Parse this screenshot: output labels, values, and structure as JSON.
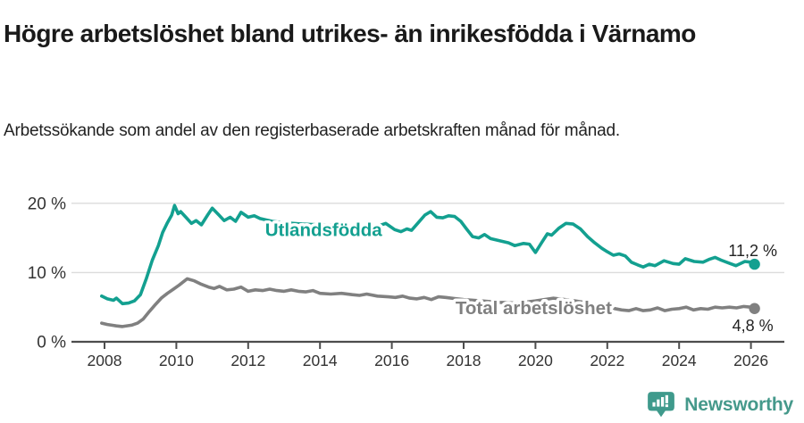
{
  "header": {
    "title": "Högre arbetslöshet bland utrikes- än inrikesfödda i Värnamo",
    "subtitle": "Arbetssökande som andel av den registerbaserade arbetskraften månad för månad."
  },
  "chart_data": {
    "type": "line",
    "title": "Högre arbetslöshet bland utrikes- än inrikesfödda i Värnamo",
    "subtitle": "Arbetssökande som andel av den registerbaserade arbetskraften månad för månad.",
    "grid": "horizontal",
    "legend": "inline-labels",
    "x_domain": [
      2007.9,
      2026.2
    ],
    "ylim": [
      0,
      21
    ],
    "y_ticks": [
      {
        "value": 0,
        "label": "0 %"
      },
      {
        "value": 10,
        "label": "10 %"
      },
      {
        "value": 20,
        "label": "20 %"
      }
    ],
    "x_ticks": [
      {
        "value": 2008,
        "label": "2008"
      },
      {
        "value": 2010,
        "label": "2010"
      },
      {
        "value": 2012,
        "label": "2012"
      },
      {
        "value": 2014,
        "label": "2014"
      },
      {
        "value": 2016,
        "label": "2016"
      },
      {
        "value": 2018,
        "label": "2018"
      },
      {
        "value": 2020,
        "label": "2020"
      },
      {
        "value": 2022,
        "label": "2022"
      },
      {
        "value": 2024,
        "label": "2024"
      },
      {
        "value": 2026,
        "label": "2026"
      }
    ],
    "series": [
      {
        "name": "Utlandsfödda",
        "color": "#13a090",
        "end_label": "11,2 %",
        "end_value": 11.2,
        "label_anchor": {
          "year": 2014.1,
          "value": 16.2
        },
        "points": [
          [
            2007.92,
            6.6
          ],
          [
            2008.08,
            6.2
          ],
          [
            2008.25,
            6.0
          ],
          [
            2008.33,
            6.3
          ],
          [
            2008.5,
            5.5
          ],
          [
            2008.67,
            5.6
          ],
          [
            2008.83,
            5.9
          ],
          [
            2009.0,
            6.8
          ],
          [
            2009.17,
            9.2
          ],
          [
            2009.33,
            11.8
          ],
          [
            2009.5,
            13.9
          ],
          [
            2009.62,
            15.8
          ],
          [
            2009.75,
            17.2
          ],
          [
            2009.87,
            18.3
          ],
          [
            2009.95,
            19.7
          ],
          [
            2010.05,
            18.5
          ],
          [
            2010.12,
            18.8
          ],
          [
            2010.28,
            17.9
          ],
          [
            2010.42,
            17.1
          ],
          [
            2010.55,
            17.5
          ],
          [
            2010.7,
            16.9
          ],
          [
            2010.87,
            18.3
          ],
          [
            2011.0,
            19.3
          ],
          [
            2011.17,
            18.4
          ],
          [
            2011.33,
            17.5
          ],
          [
            2011.5,
            18.0
          ],
          [
            2011.65,
            17.4
          ],
          [
            2011.8,
            18.7
          ],
          [
            2012.0,
            18.0
          ],
          [
            2012.17,
            18.2
          ],
          [
            2012.33,
            17.8
          ],
          [
            2012.67,
            17.4
          ],
          [
            2013.0,
            17.2
          ],
          [
            2013.5,
            17.0
          ],
          [
            2014.0,
            16.9
          ],
          [
            2014.5,
            16.8
          ],
          [
            2015.0,
            16.7
          ],
          [
            2015.5,
            16.5
          ],
          [
            2015.83,
            17.1
          ],
          [
            2016.08,
            16.2
          ],
          [
            2016.25,
            15.9
          ],
          [
            2016.42,
            16.3
          ],
          [
            2016.55,
            16.1
          ],
          [
            2016.75,
            17.3
          ],
          [
            2016.92,
            18.3
          ],
          [
            2017.08,
            18.8
          ],
          [
            2017.25,
            18.0
          ],
          [
            2017.42,
            17.9
          ],
          [
            2017.58,
            18.2
          ],
          [
            2017.75,
            18.1
          ],
          [
            2017.92,
            17.4
          ],
          [
            2018.08,
            16.3
          ],
          [
            2018.25,
            15.2
          ],
          [
            2018.42,
            15.0
          ],
          [
            2018.58,
            15.5
          ],
          [
            2018.75,
            14.9
          ],
          [
            2019.0,
            14.6
          ],
          [
            2019.25,
            14.3
          ],
          [
            2019.42,
            13.9
          ],
          [
            2019.67,
            14.2
          ],
          [
            2019.83,
            14.1
          ],
          [
            2020.0,
            12.9
          ],
          [
            2020.17,
            14.3
          ],
          [
            2020.33,
            15.6
          ],
          [
            2020.45,
            15.4
          ],
          [
            2020.65,
            16.4
          ],
          [
            2020.85,
            17.1
          ],
          [
            2021.05,
            17.0
          ],
          [
            2021.25,
            16.3
          ],
          [
            2021.45,
            15.2
          ],
          [
            2021.65,
            14.3
          ],
          [
            2021.85,
            13.5
          ],
          [
            2022.0,
            13.0
          ],
          [
            2022.17,
            12.5
          ],
          [
            2022.33,
            12.7
          ],
          [
            2022.5,
            12.4
          ],
          [
            2022.67,
            11.5
          ],
          [
            2022.85,
            11.1
          ],
          [
            2023.0,
            10.8
          ],
          [
            2023.17,
            11.2
          ],
          [
            2023.33,
            11.0
          ],
          [
            2023.58,
            11.7
          ],
          [
            2023.83,
            11.3
          ],
          [
            2024.0,
            11.2
          ],
          [
            2024.17,
            12.0
          ],
          [
            2024.42,
            11.6
          ],
          [
            2024.67,
            11.5
          ],
          [
            2024.83,
            11.9
          ],
          [
            2025.0,
            12.2
          ],
          [
            2025.17,
            11.8
          ],
          [
            2025.42,
            11.3
          ],
          [
            2025.58,
            11.0
          ],
          [
            2025.83,
            11.6
          ],
          [
            2026.0,
            11.5
          ],
          [
            2026.1,
            11.2
          ]
        ]
      },
      {
        "name": "Total arbetslöshet",
        "color": "#808080",
        "end_label": "4,8 %",
        "end_value": 4.8,
        "label_anchor": {
          "year": 2019.95,
          "value": 4.9
        },
        "points": [
          [
            2007.92,
            2.7
          ],
          [
            2008.08,
            2.5
          ],
          [
            2008.33,
            2.3
          ],
          [
            2008.5,
            2.2
          ],
          [
            2008.75,
            2.4
          ],
          [
            2008.92,
            2.7
          ],
          [
            2009.08,
            3.3
          ],
          [
            2009.25,
            4.4
          ],
          [
            2009.42,
            5.4
          ],
          [
            2009.58,
            6.3
          ],
          [
            2009.75,
            7.0
          ],
          [
            2009.92,
            7.6
          ],
          [
            2010.08,
            8.2
          ],
          [
            2010.3,
            9.1
          ],
          [
            2010.5,
            8.8
          ],
          [
            2010.7,
            8.3
          ],
          [
            2010.9,
            7.9
          ],
          [
            2011.05,
            7.7
          ],
          [
            2011.2,
            8.0
          ],
          [
            2011.4,
            7.5
          ],
          [
            2011.6,
            7.6
          ],
          [
            2011.8,
            7.9
          ],
          [
            2012.0,
            7.3
          ],
          [
            2012.2,
            7.5
          ],
          [
            2012.4,
            7.4
          ],
          [
            2012.6,
            7.6
          ],
          [
            2012.8,
            7.4
          ],
          [
            2013.0,
            7.3
          ],
          [
            2013.2,
            7.5
          ],
          [
            2013.4,
            7.3
          ],
          [
            2013.6,
            7.2
          ],
          [
            2013.8,
            7.4
          ],
          [
            2014.0,
            7.0
          ],
          [
            2014.3,
            6.9
          ],
          [
            2014.6,
            7.0
          ],
          [
            2014.9,
            6.8
          ],
          [
            2015.1,
            6.7
          ],
          [
            2015.3,
            6.9
          ],
          [
            2015.6,
            6.6
          ],
          [
            2015.9,
            6.5
          ],
          [
            2016.1,
            6.4
          ],
          [
            2016.3,
            6.6
          ],
          [
            2016.5,
            6.3
          ],
          [
            2016.7,
            6.2
          ],
          [
            2016.9,
            6.4
          ],
          [
            2017.1,
            6.1
          ],
          [
            2017.3,
            6.5
          ],
          [
            2017.5,
            6.4
          ],
          [
            2018.0,
            6.1
          ],
          [
            2018.5,
            5.9
          ],
          [
            2019.0,
            5.7
          ],
          [
            2019.5,
            5.6
          ],
          [
            2020.0,
            5.9
          ],
          [
            2020.5,
            6.3
          ],
          [
            2021.0,
            6.0
          ],
          [
            2021.5,
            5.6
          ],
          [
            2022.0,
            5.0
          ],
          [
            2022.4,
            4.6
          ],
          [
            2022.6,
            4.5
          ],
          [
            2022.8,
            4.8
          ],
          [
            2023.0,
            4.5
          ],
          [
            2023.2,
            4.6
          ],
          [
            2023.4,
            4.9
          ],
          [
            2023.6,
            4.5
          ],
          [
            2023.8,
            4.7
          ],
          [
            2024.0,
            4.8
          ],
          [
            2024.2,
            5.0
          ],
          [
            2024.4,
            4.6
          ],
          [
            2024.6,
            4.8
          ],
          [
            2024.8,
            4.7
          ],
          [
            2025.0,
            5.0
          ],
          [
            2025.2,
            4.9
          ],
          [
            2025.4,
            5.0
          ],
          [
            2025.6,
            4.9
          ],
          [
            2025.8,
            5.1
          ],
          [
            2026.0,
            5.0
          ],
          [
            2026.1,
            4.8
          ]
        ]
      }
    ],
    "colors": {
      "accent_teal": "#13a090",
      "line_gray": "#808080",
      "grid": "#dcdcdc",
      "axis": "#4d4d4d",
      "tick_text": "#333333",
      "value_text": "#222222"
    }
  },
  "footer": {
    "brand": "Newsworthy",
    "brand_color": "#45998b"
  }
}
